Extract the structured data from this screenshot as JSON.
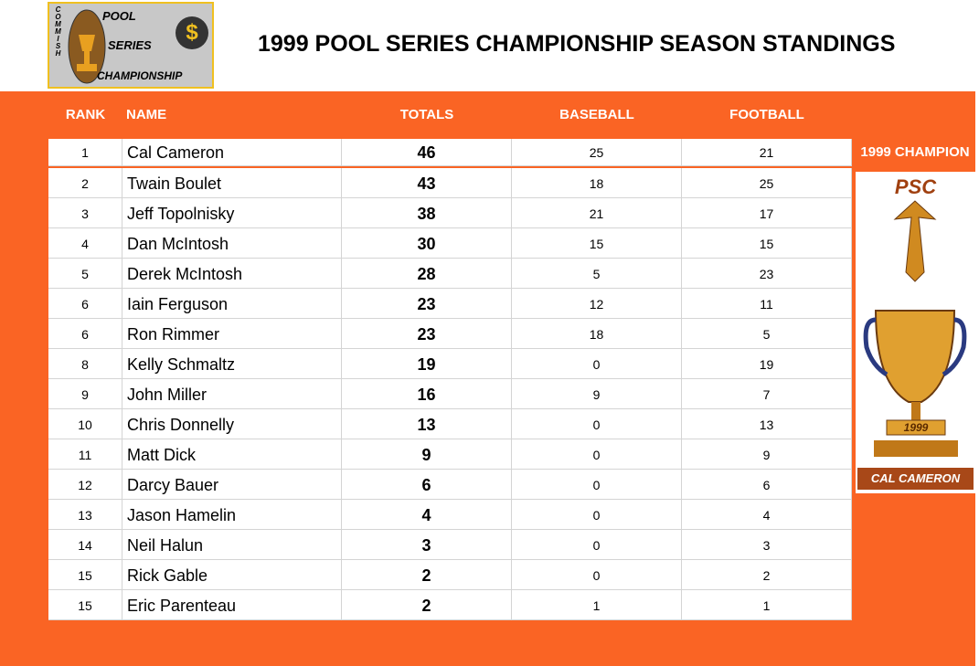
{
  "header": {
    "logo": {
      "side": "COMMISH",
      "line1": "POOL",
      "line2": "SERIES",
      "line3": "CHAMPIONSHIP",
      "symbol": "$"
    },
    "title": "1999 POOL SERIES CHAMPIONSHIP SEASON STANDINGS"
  },
  "table": {
    "columns": [
      "RANK",
      "NAME",
      "TOTALS",
      "BASEBALL",
      "FOOTBALL"
    ],
    "rows": [
      [
        1,
        "Cal Cameron",
        46,
        25,
        21
      ],
      [
        2,
        "Twain Boulet",
        43,
        18,
        25
      ],
      [
        3,
        "Jeff Topolnisky",
        38,
        21,
        17
      ],
      [
        4,
        "Dan McIntosh",
        30,
        15,
        15
      ],
      [
        5,
        "Derek McIntosh",
        28,
        5,
        23
      ],
      [
        6,
        "Iain Ferguson",
        23,
        12,
        11
      ],
      [
        6,
        "Ron Rimmer",
        23,
        18,
        5
      ],
      [
        8,
        "Kelly Schmaltz",
        19,
        0,
        19
      ],
      [
        9,
        "John Miller",
        16,
        9,
        7
      ],
      [
        10,
        "Chris Donnelly",
        13,
        0,
        13
      ],
      [
        11,
        "Matt Dick",
        9,
        0,
        9
      ],
      [
        12,
        "Darcy Bauer",
        6,
        0,
        6
      ],
      [
        13,
        "Jason Hamelin",
        4,
        0,
        4
      ],
      [
        14,
        "Neil Halun",
        3,
        0,
        3
      ],
      [
        15,
        "Rick Gable",
        2,
        0,
        2
      ],
      [
        15,
        "Eric Parenteau",
        2,
        1,
        1
      ]
    ]
  },
  "champion": {
    "label": "1999 CHAMPION",
    "badge": "PSC",
    "year": "1999",
    "name": "CAL CAMERON"
  }
}
